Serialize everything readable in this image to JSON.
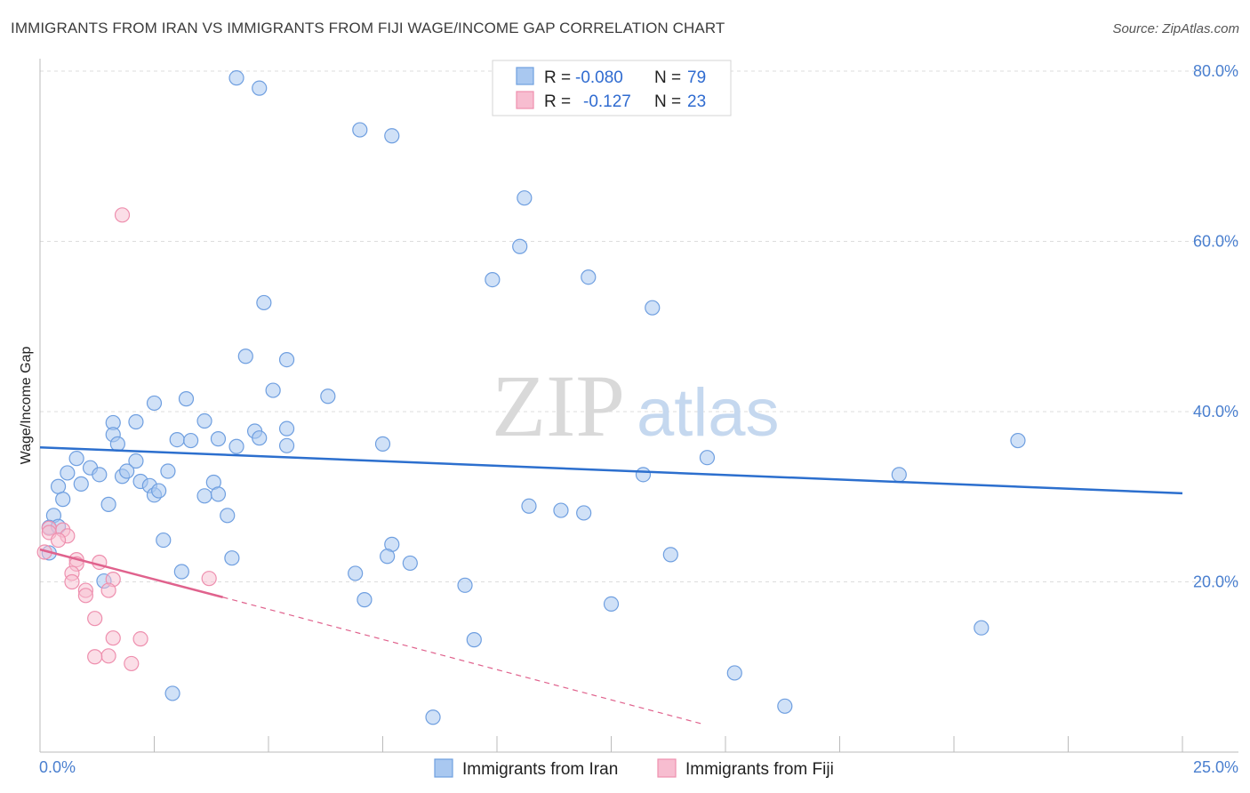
{
  "header": {
    "title": "IMMIGRANTS FROM IRAN VS IMMIGRANTS FROM FIJI WAGE/INCOME GAP CORRELATION CHART",
    "source": "Source: ZipAtlas.com"
  },
  "watermark": {
    "zip": "ZIP",
    "atlas": "atlas"
  },
  "legend_top": {
    "rows": [
      {
        "r_label": "R =",
        "r_value": "-0.080",
        "n_label": "N =",
        "n_value": "79"
      },
      {
        "r_label": "R =",
        "r_value": "-0.127",
        "n_label": "N =",
        "n_value": "23"
      }
    ]
  },
  "legend_bottom": {
    "items": [
      {
        "label": "Immigrants from Iran"
      },
      {
        "label": "Immigrants from Fiji"
      }
    ]
  },
  "chart_data": {
    "type": "scatter",
    "title": "IMMIGRANTS FROM IRAN VS IMMIGRANTS FROM FIJI WAGE/INCOME GAP CORRELATION CHART",
    "xlabel": "",
    "ylabel": "Wage/Income Gap",
    "xlim": [
      0,
      25
    ],
    "ylim": [
      0,
      80
    ],
    "x_tick_labels": [
      "0.0%",
      "25.0%"
    ],
    "y_tick_labels": [
      "20.0%",
      "40.0%",
      "60.0%",
      "80.0%"
    ],
    "y_tick_values": [
      20,
      40,
      60,
      80
    ],
    "grid": true,
    "legend_position": "top-center",
    "colors": {
      "iran_fill": "#a9c8f0",
      "iran_stroke": "#6f9fe0",
      "iran_line": "#2c6fce",
      "fiji_fill": "#f7bdd0",
      "fiji_stroke": "#ee8fae",
      "fiji_line": "#e0628d",
      "grid": "#dddddd"
    },
    "series": [
      {
        "name": "Immigrants from Iran",
        "r": -0.08,
        "n": 79,
        "trend": {
          "x": [
            0,
            25
          ],
          "y": [
            35.8,
            30.4
          ]
        },
        "points": [
          [
            4.3,
            79.2
          ],
          [
            4.8,
            78.0
          ],
          [
            7.0,
            73.1
          ],
          [
            7.7,
            72.4
          ],
          [
            10.6,
            65.1
          ],
          [
            10.5,
            59.4
          ],
          [
            9.9,
            55.5
          ],
          [
            12.0,
            55.8
          ],
          [
            13.4,
            52.2
          ],
          [
            4.9,
            52.8
          ],
          [
            4.5,
            46.5
          ],
          [
            5.4,
            46.1
          ],
          [
            5.1,
            42.5
          ],
          [
            6.3,
            41.8
          ],
          [
            2.5,
            41.0
          ],
          [
            3.2,
            41.5
          ],
          [
            1.6,
            38.7
          ],
          [
            2.1,
            38.8
          ],
          [
            3.6,
            38.9
          ],
          [
            5.4,
            38.0
          ],
          [
            4.7,
            37.7
          ],
          [
            1.6,
            37.3
          ],
          [
            4.8,
            36.9
          ],
          [
            3.9,
            36.8
          ],
          [
            1.7,
            36.2
          ],
          [
            3.0,
            36.7
          ],
          [
            3.3,
            36.6
          ],
          [
            4.3,
            35.9
          ],
          [
            5.4,
            36.0
          ],
          [
            7.5,
            36.2
          ],
          [
            0.8,
            34.5
          ],
          [
            0.6,
            32.8
          ],
          [
            1.1,
            33.4
          ],
          [
            1.8,
            32.4
          ],
          [
            2.2,
            31.8
          ],
          [
            2.1,
            34.2
          ],
          [
            1.9,
            33.0
          ],
          [
            0.9,
            31.5
          ],
          [
            1.3,
            32.6
          ],
          [
            2.8,
            33.0
          ],
          [
            3.8,
            31.7
          ],
          [
            3.6,
            30.1
          ],
          [
            3.9,
            30.3
          ],
          [
            2.4,
            31.3
          ],
          [
            2.5,
            30.2
          ],
          [
            0.4,
            31.2
          ],
          [
            0.5,
            29.7
          ],
          [
            1.5,
            29.1
          ],
          [
            0.3,
            27.8
          ],
          [
            0.2,
            26.4
          ],
          [
            4.1,
            27.8
          ],
          [
            10.7,
            28.9
          ],
          [
            11.9,
            28.1
          ],
          [
            11.4,
            28.4
          ],
          [
            13.2,
            32.6
          ],
          [
            14.6,
            34.6
          ],
          [
            18.8,
            32.6
          ],
          [
            21.4,
            36.6
          ],
          [
            7.7,
            24.4
          ],
          [
            2.7,
            24.9
          ],
          [
            7.6,
            23.0
          ],
          [
            8.1,
            22.2
          ],
          [
            6.9,
            21.0
          ],
          [
            4.2,
            22.8
          ],
          [
            3.1,
            21.2
          ],
          [
            1.4,
            20.1
          ],
          [
            9.3,
            19.6
          ],
          [
            13.8,
            23.2
          ],
          [
            7.1,
            17.9
          ],
          [
            12.5,
            17.4
          ],
          [
            20.6,
            14.6
          ],
          [
            9.5,
            13.2
          ],
          [
            15.2,
            9.3
          ],
          [
            2.9,
            6.9
          ],
          [
            8.6,
            4.1
          ],
          [
            16.3,
            5.4
          ],
          [
            0.2,
            23.4
          ],
          [
            2.6,
            30.7
          ],
          [
            0.4,
            26.5
          ]
        ]
      },
      {
        "name": "Immigrants from Fiji",
        "r": -0.127,
        "n": 23,
        "trend": {
          "x": [
            0,
            4.0
          ],
          "y": [
            23.8,
            18.2
          ]
        },
        "trend_extension": {
          "x": [
            4.0,
            14.5
          ],
          "y": [
            18.2,
            3.3
          ]
        },
        "points": [
          [
            1.8,
            63.1
          ],
          [
            0.2,
            26.3
          ],
          [
            0.5,
            26.1
          ],
          [
            0.6,
            25.4
          ],
          [
            0.2,
            25.8
          ],
          [
            0.4,
            24.9
          ],
          [
            0.1,
            23.5
          ],
          [
            0.8,
            22.6
          ],
          [
            1.3,
            22.3
          ],
          [
            0.8,
            22.1
          ],
          [
            0.7,
            21.0
          ],
          [
            1.6,
            20.3
          ],
          [
            0.7,
            20.0
          ],
          [
            3.7,
            20.4
          ],
          [
            1.0,
            19.0
          ],
          [
            1.5,
            19.0
          ],
          [
            1.0,
            18.4
          ],
          [
            1.2,
            15.7
          ],
          [
            1.6,
            13.4
          ],
          [
            2.2,
            13.3
          ],
          [
            1.5,
            11.3
          ],
          [
            1.2,
            11.2
          ],
          [
            2.0,
            10.4
          ]
        ]
      }
    ]
  }
}
